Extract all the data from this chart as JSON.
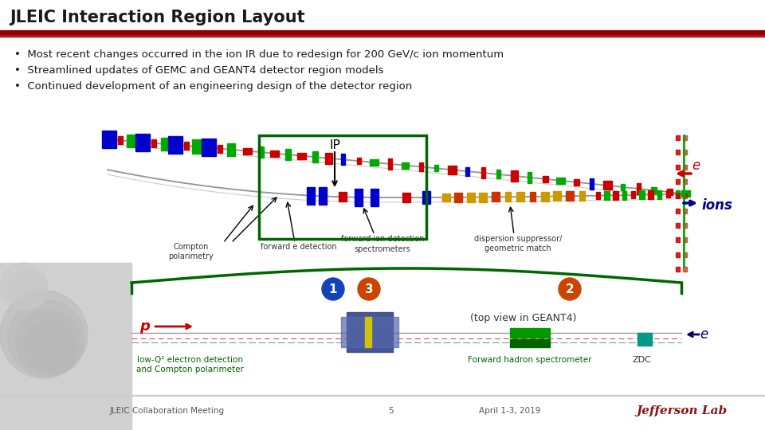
{
  "title": "JLEIC Interaction Region Layout",
  "title_color": "#1a1a1a",
  "red_line_color": "#8b0000",
  "red_line2_color": "#cc2222",
  "bullet_points": [
    "Most recent changes occurred in the ion IR due to redesign for 200 GeV/c ion momentum",
    "Streamlined updates of GEMC and GEANT4 detector region models",
    "Continued development of an engineering design of the detector region"
  ],
  "footer_left": "JLEIC Collaboration Meeting",
  "footer_center": "5",
  "footer_right": "April 1-3, 2019",
  "bg_color": "#ffffff",
  "green_box_color": "#006600",
  "ions_color": "#00008b",
  "e_label_color": "#cc0000",
  "circle1_color": "#1144bb",
  "circle2_color": "#cc4400",
  "circle3_color": "#cc4400",
  "geant_label": "(top view in GEANT4)",
  "low_q2_label": "low-Q² electron detection\nand Compton polarimeter",
  "low_q2_color": "#006600",
  "fwd_hadron_label": "Forward hadron spectrometer",
  "fwd_hadron_color": "#006600",
  "zdc_label": "ZDC",
  "p_label": "p",
  "e_bottom_label": "e",
  "top_green_brace_color": "#006600"
}
